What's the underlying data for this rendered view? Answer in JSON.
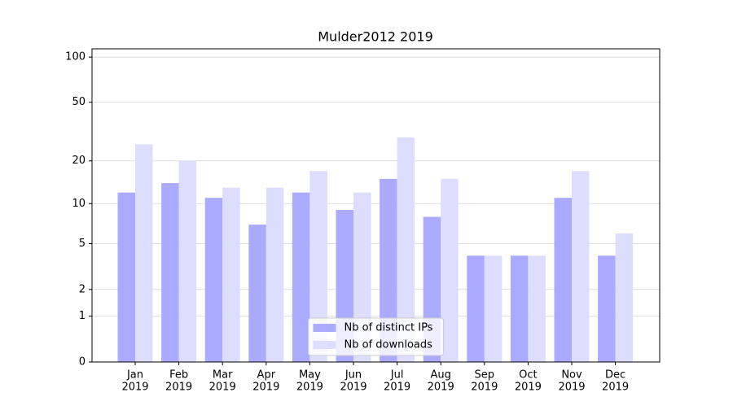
{
  "chart_data": {
    "type": "bar",
    "title": "Mulder2012 2019",
    "categories": [
      [
        "Jan",
        "2019"
      ],
      [
        "Feb",
        "2019"
      ],
      [
        "Mar",
        "2019"
      ],
      [
        "Apr",
        "2019"
      ],
      [
        "May",
        "2019"
      ],
      [
        "Jun",
        "2019"
      ],
      [
        "Jul",
        "2019"
      ],
      [
        "Aug",
        "2019"
      ],
      [
        "Sep",
        "2019"
      ],
      [
        "Oct",
        "2019"
      ],
      [
        "Nov",
        "2019"
      ],
      [
        "Dec",
        "2019"
      ]
    ],
    "series": [
      {
        "name": "Nb of distinct IPs",
        "color": "#aaaaff",
        "values": [
          12,
          14,
          11,
          7,
          12,
          9,
          15,
          8,
          4,
          4,
          11,
          4
        ]
      },
      {
        "name": "Nb of downloads",
        "color": "#ddddff",
        "values": [
          26,
          20,
          13,
          13,
          17,
          12,
          29,
          15,
          4,
          4,
          17,
          6
        ]
      }
    ],
    "yscale": "log1p",
    "ylim": [
      0,
      113.5
    ],
    "yticks": [
      0,
      1,
      2,
      5,
      10,
      20,
      50,
      100
    ],
    "grid": true,
    "legend": "lower center"
  }
}
